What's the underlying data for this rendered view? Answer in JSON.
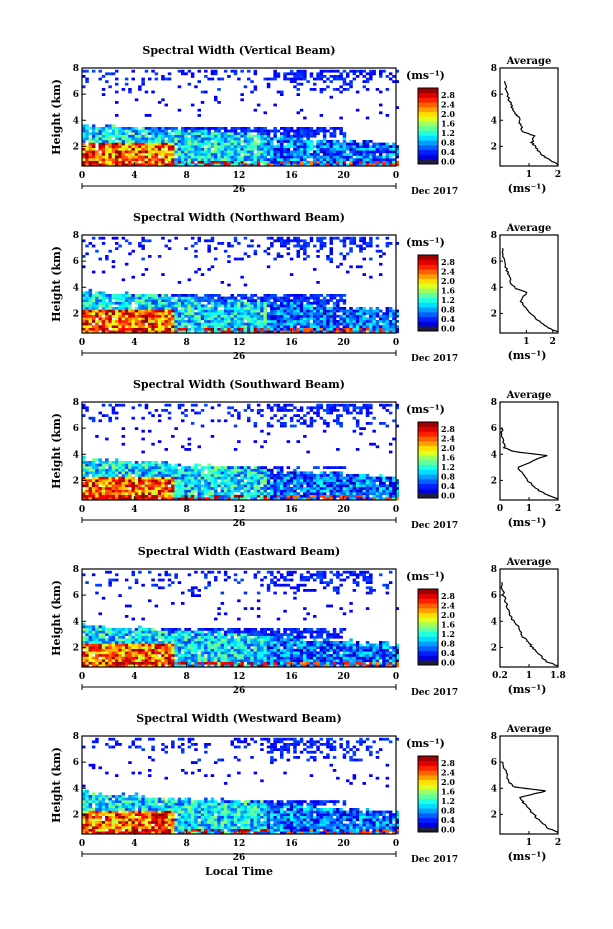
{
  "chart_data": [
    {
      "type": "heatmap",
      "title": "Spectral Width (Vertical Beam)",
      "ylabel": "Height (km)",
      "colorbar_unit": "(ms⁻¹)",
      "colorbar_ticks": [
        "0.0",
        "0.4",
        "0.8",
        "1.2",
        "1.6",
        "2.0",
        "2.4",
        "2.8"
      ],
      "x_ticks": [
        "0",
        "4",
        "8",
        "12",
        "16",
        "20",
        "0"
      ],
      "date_label": "26",
      "month_label": "Dec 2017",
      "y_ticks": [
        "2",
        "4",
        "6",
        "8"
      ],
      "xlim": [
        0,
        24
      ],
      "ylim": [
        0.5,
        8
      ],
      "upper_layer_top_km": 8,
      "mid_layer_km": [
        2.8,
        3.6
      ],
      "lower_top_km": 3.8,
      "average": {
        "title": "Average",
        "xlabel": "(ms⁻¹)",
        "xticks": [
          "1",
          "2"
        ],
        "xlim": [
          0,
          2
        ],
        "profile": [
          [
            2.0,
            0.6
          ],
          [
            1.7,
            1.0
          ],
          [
            1.4,
            1.4
          ],
          [
            1.25,
            1.9
          ],
          [
            1.1,
            2.3
          ],
          [
            1.2,
            2.8
          ],
          [
            0.8,
            3.1
          ],
          [
            0.7,
            3.7
          ],
          [
            0.65,
            4.2
          ],
          [
            0.5,
            4.6
          ],
          [
            0.4,
            5.1
          ],
          [
            0.3,
            5.7
          ],
          [
            0.2,
            6.4
          ],
          [
            0.15,
            7.0
          ]
        ]
      }
    },
    {
      "type": "heatmap",
      "title": "Spectral Width (Northward Beam)",
      "ylabel": "Height (km)",
      "colorbar_unit": "(ms⁻¹)",
      "colorbar_ticks": [
        "0.0",
        "0.4",
        "0.8",
        "1.2",
        "1.6",
        "2.0",
        "2.4",
        "2.8"
      ],
      "x_ticks": [
        "0",
        "4",
        "8",
        "12",
        "16",
        "20",
        "0"
      ],
      "date_label": "26",
      "month_label": "Dec 2017",
      "y_ticks": [
        "2",
        "4",
        "6",
        "8"
      ],
      "xlim": [
        0,
        24
      ],
      "ylim": [
        0.5,
        8
      ],
      "upper_layer_top_km": 8,
      "mid_layer_km": [
        2.8,
        3.6
      ],
      "lower_top_km": 3.8,
      "average": {
        "title": "Average",
        "xlabel": "(ms⁻¹)",
        "xticks": [
          "1",
          "2"
        ],
        "xlim": [
          0,
          2.2
        ],
        "profile": [
          [
            2.2,
            0.6
          ],
          [
            1.8,
            0.9
          ],
          [
            1.5,
            1.4
          ],
          [
            1.2,
            1.9
          ],
          [
            1.0,
            2.4
          ],
          [
            0.8,
            2.9
          ],
          [
            1.0,
            3.6
          ],
          [
            0.6,
            3.9
          ],
          [
            0.4,
            4.3
          ],
          [
            0.35,
            4.8
          ],
          [
            0.25,
            5.4
          ],
          [
            0.15,
            6.2
          ],
          [
            0.1,
            7.0
          ]
        ]
      }
    },
    {
      "type": "heatmap",
      "title": "Spectral Width (Southward Beam)",
      "ylabel": "Height (km)",
      "colorbar_unit": "(ms⁻¹)",
      "colorbar_ticks": [
        "0.0",
        "0.4",
        "0.8",
        "1.2",
        "1.6",
        "2.0",
        "2.4",
        "2.8"
      ],
      "x_ticks": [
        "0",
        "4",
        "8",
        "12",
        "16",
        "20",
        "0"
      ],
      "date_label": "26",
      "month_label": "Dec 2017",
      "y_ticks": [
        "2",
        "4",
        "6",
        "8"
      ],
      "xlim": [
        0,
        24
      ],
      "ylim": [
        0.5,
        8
      ],
      "upper_layer_top_km": 8,
      "mid_layer_km": [
        3.0,
        3.2
      ],
      "lower_top_km": 3.8,
      "average": {
        "title": "Average",
        "xlabel": "(ms⁻¹)",
        "xticks": [
          "0",
          "1",
          "2"
        ],
        "xlim": [
          0,
          2
        ],
        "profile": [
          [
            2.0,
            0.6
          ],
          [
            1.6,
            0.9
          ],
          [
            1.3,
            1.3
          ],
          [
            1.0,
            1.9
          ],
          [
            0.8,
            2.4
          ],
          [
            0.6,
            3.0
          ],
          [
            1.6,
            3.9
          ],
          [
            0.5,
            4.2
          ],
          [
            0.15,
            4.5
          ],
          [
            0.1,
            5.2
          ],
          [
            0.05,
            6.0
          ]
        ]
      }
    },
    {
      "type": "heatmap",
      "title": "Spectral Width (Eastward Beam)",
      "ylabel": "Height (km)",
      "colorbar_unit": "(ms⁻¹)",
      "colorbar_ticks": [
        "0.0",
        "0.4",
        "0.8",
        "1.2",
        "1.6",
        "2.0",
        "2.4",
        "2.8"
      ],
      "x_ticks": [
        "0",
        "4",
        "8",
        "12",
        "16",
        "20",
        "0"
      ],
      "date_label": "26",
      "month_label": "Dec 2017",
      "y_ticks": [
        "2",
        "4",
        "6",
        "8"
      ],
      "xlim": [
        0,
        24
      ],
      "ylim": [
        0.5,
        8
      ],
      "upper_layer_top_km": 8,
      "mid_layer_km": [
        2.8,
        3.6
      ],
      "lower_top_km": 3.8,
      "average": {
        "title": "Average",
        "xlabel": "(ms⁻¹)",
        "xticks": [
          "0.2",
          "1",
          "1.8"
        ],
        "xlim": [
          0.2,
          1.8
        ],
        "profile": [
          [
            1.8,
            0.6
          ],
          [
            1.5,
            0.9
          ],
          [
            1.3,
            1.4
          ],
          [
            1.1,
            1.9
          ],
          [
            1.0,
            2.4
          ],
          [
            0.8,
            2.9
          ],
          [
            0.75,
            3.5
          ],
          [
            0.6,
            3.9
          ],
          [
            0.5,
            4.3
          ],
          [
            0.45,
            4.8
          ],
          [
            0.35,
            5.4
          ],
          [
            0.3,
            6.0
          ],
          [
            0.25,
            7.0
          ]
        ]
      }
    },
    {
      "type": "heatmap",
      "title": "Spectral Width (Westward Beam)",
      "ylabel": "Height (km)",
      "colorbar_unit": "(ms⁻¹)",
      "colorbar_ticks": [
        "0.0",
        "0.4",
        "0.8",
        "1.2",
        "1.6",
        "2.0",
        "2.4",
        "2.8"
      ],
      "x_ticks": [
        "0",
        "4",
        "8",
        "12",
        "16",
        "20",
        "0"
      ],
      "date_label": "26",
      "month_label": "Dec 2017",
      "xlabel": "Local Time",
      "y_ticks": [
        "2",
        "4",
        "6",
        "8"
      ],
      "xlim": [
        0,
        24
      ],
      "ylim": [
        0.5,
        8
      ],
      "upper_layer_top_km": 8,
      "mid_layer_km": [
        2.8,
        3.2
      ],
      "lower_top_km": 3.8,
      "average": {
        "title": "Average",
        "xlabel": "(ms⁻¹)",
        "xticks": [
          "1",
          "2"
        ],
        "xlim": [
          0,
          2
        ],
        "profile": [
          [
            2.0,
            0.6
          ],
          [
            1.7,
            0.9
          ],
          [
            1.4,
            1.4
          ],
          [
            1.2,
            1.9
          ],
          [
            1.0,
            2.4
          ],
          [
            0.8,
            2.9
          ],
          [
            0.7,
            3.3
          ],
          [
            1.6,
            3.8
          ],
          [
            0.5,
            4.1
          ],
          [
            0.3,
            4.5
          ],
          [
            0.2,
            5.2
          ],
          [
            0.1,
            6.0
          ]
        ]
      }
    }
  ]
}
